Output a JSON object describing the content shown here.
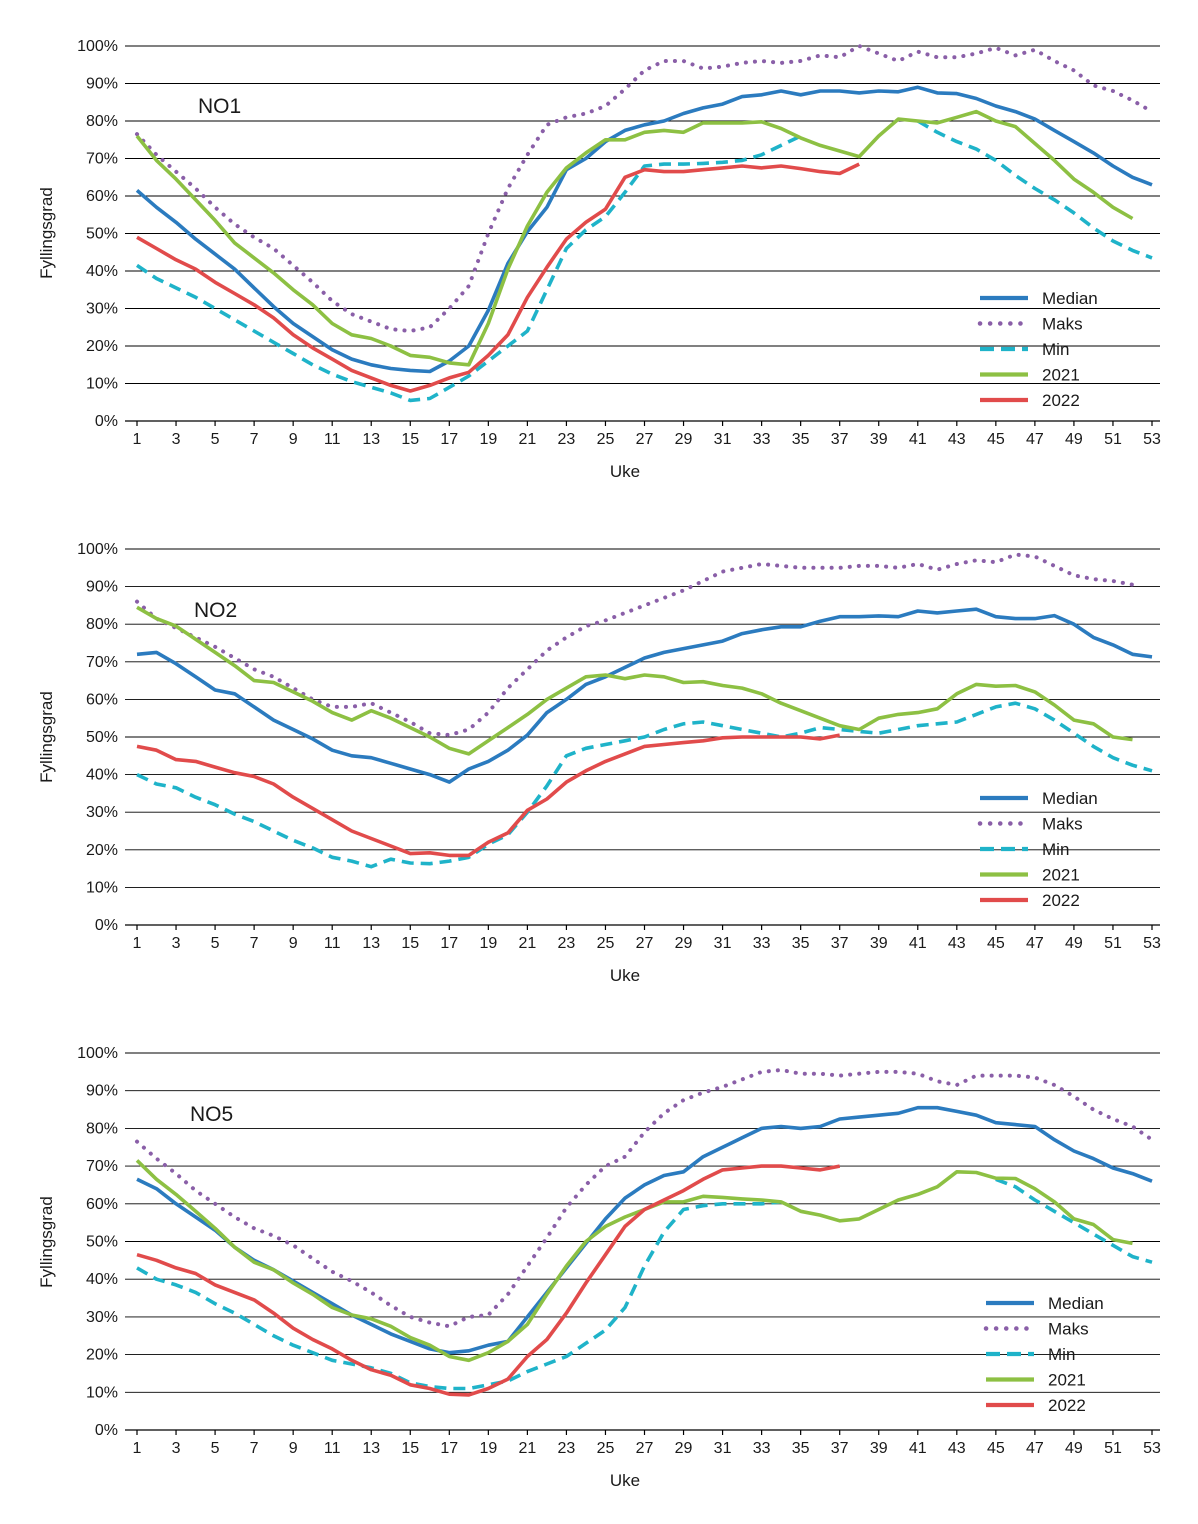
{
  "chart_data": [
    {
      "type": "line",
      "title": "NO1",
      "xlabel": "Uke",
      "ylabel": "Fyllingsgrad",
      "ylim": [
        0,
        100
      ],
      "y_ticks": [
        "0%",
        "10%",
        "20%",
        "30%",
        "40%",
        "50%",
        "60%",
        "70%",
        "80%",
        "90%",
        "100%"
      ],
      "x_ticks": [
        "1",
        "3",
        "5",
        "7",
        "9",
        "11",
        "13",
        "15",
        "17",
        "19",
        "21",
        "23",
        "25",
        "27",
        "29",
        "31",
        "33",
        "35",
        "37",
        "39",
        "41",
        "43",
        "45",
        "47",
        "49",
        "51",
        "53"
      ],
      "series": [
        {
          "name": "Median",
          "color": "#2b7bbf",
          "style": "solid",
          "values": [
            61.5,
            57,
            53,
            48.5,
            44.5,
            40.5,
            35.5,
            30.5,
            26,
            22.5,
            19,
            16.5,
            15,
            14,
            13.5,
            13.2,
            16,
            20,
            29.5,
            42,
            50.5,
            57,
            67,
            70,
            74.5,
            77.5,
            79,
            80,
            82,
            83.5,
            84.5,
            86.5,
            87,
            88,
            87,
            88,
            88,
            87.5,
            88,
            87.8,
            89,
            87.5,
            87.3,
            86,
            84,
            82.5,
            80.5,
            77.5,
            74.5,
            71.5,
            68,
            65,
            63
          ]
        },
        {
          "name": "Maks",
          "color": "#8a5fa8",
          "style": "dotted",
          "values": [
            76.5,
            71,
            66.5,
            62,
            57,
            52.5,
            49,
            46,
            41.5,
            37,
            32,
            28.5,
            26.5,
            24.5,
            24,
            25,
            30,
            36,
            50,
            62,
            71,
            79,
            81,
            82,
            84,
            88.5,
            93.5,
            96,
            96,
            94,
            94.5,
            95.5,
            96,
            95.5,
            96,
            97.5,
            97,
            100,
            98,
            96,
            98.5,
            97,
            97,
            98,
            99.5,
            97.5,
            99,
            96,
            93.5,
            89.5,
            88,
            85.5,
            82.5
          ]
        },
        {
          "name": "Min",
          "color": "#1fb3c9",
          "style": "dashed",
          "values": [
            41.5,
            38,
            35.5,
            33,
            30,
            27,
            24,
            21,
            18,
            15,
            12.5,
            10.5,
            9,
            7.5,
            5.5,
            6,
            9,
            12,
            16,
            20,
            24,
            35,
            46,
            51,
            54.5,
            61,
            68,
            68.5,
            68.5,
            68.7,
            69,
            69.5,
            71,
            73.5,
            76,
            null,
            null,
            null,
            null,
            null,
            80,
            77,
            74.5,
            72.5,
            69.5,
            65.5,
            62,
            59,
            55.5,
            51.5,
            48,
            45.5,
            43.5
          ]
        },
        {
          "name": "2021",
          "color": "#8dc043",
          "style": "solid",
          "values": [
            76,
            69.5,
            64.5,
            59,
            53.5,
            47.5,
            43.5,
            39.5,
            35,
            31,
            26,
            23,
            22,
            20,
            17.5,
            17,
            15.5,
            15,
            26,
            40.5,
            52,
            61,
            67.5,
            71.5,
            75,
            75,
            77,
            77.5,
            77,
            79.5,
            79.5,
            79.5,
            79.8,
            78,
            75.5,
            73.5,
            72,
            70.5,
            76,
            80.5,
            80,
            79.5,
            81,
            82.5,
            80,
            78.5,
            74,
            69.5,
            64.5,
            61,
            57,
            54,
            null
          ]
        },
        {
          "name": "2022",
          "color": "#e14b4b",
          "style": "solid",
          "values": [
            49,
            46,
            43,
            40.5,
            37,
            34,
            31,
            27.5,
            23,
            19.5,
            16.5,
            13.5,
            11.5,
            9.5,
            8,
            9.5,
            11.5,
            13,
            17.5,
            23,
            33,
            41,
            48.5,
            53,
            56.5,
            65,
            67,
            66.5,
            66.5,
            67,
            67.5,
            68,
            67.5,
            68,
            67.3,
            66.5,
            66,
            68.5,
            null,
            null,
            null,
            null,
            null,
            null,
            null,
            null,
            null,
            null,
            null,
            null,
            null,
            null,
            null
          ]
        }
      ]
    },
    {
      "type": "line",
      "title": "NO2",
      "xlabel": "Uke",
      "ylabel": "Fyllingsgrad",
      "ylim": [
        0,
        100
      ],
      "y_ticks": [
        "0%",
        "10%",
        "20%",
        "30%",
        "40%",
        "50%",
        "60%",
        "70%",
        "80%",
        "90%",
        "100%"
      ],
      "x_ticks": [
        "1",
        "3",
        "5",
        "7",
        "9",
        "11",
        "13",
        "15",
        "17",
        "19",
        "21",
        "23",
        "25",
        "27",
        "29",
        "31",
        "33",
        "35",
        "37",
        "39",
        "41",
        "43",
        "45",
        "47",
        "49",
        "51",
        "53"
      ],
      "series": [
        {
          "name": "Median",
          "color": "#2b7bbf",
          "style": "solid",
          "values": [
            72,
            72.5,
            69.5,
            66,
            62.5,
            61.5,
            58,
            54.5,
            52,
            49.5,
            46.5,
            45,
            44.5,
            43,
            41.5,
            40,
            38,
            41.5,
            43.5,
            46.5,
            50.5,
            56.5,
            60,
            64,
            66,
            68.5,
            71,
            72.5,
            73.5,
            74.5,
            75.5,
            77.5,
            78.5,
            79.3,
            79.3,
            80.8,
            82,
            82,
            82.2,
            82,
            83.5,
            83,
            83.5,
            84,
            82,
            81.5,
            81.5,
            82.3,
            80,
            76.5,
            74.5,
            72,
            71.3
          ]
        },
        {
          "name": "Maks",
          "color": "#8a5fa8",
          "style": "dotted",
          "values": [
            86,
            81.5,
            79,
            76.5,
            74,
            71,
            68,
            66,
            63,
            60,
            58,
            58,
            59,
            56.5,
            54,
            51,
            50.5,
            52,
            56.5,
            63,
            68,
            73,
            76.5,
            79.5,
            81,
            83,
            85,
            87,
            89,
            91.5,
            94,
            95,
            96,
            95.5,
            95,
            95,
            95,
            95.5,
            95.5,
            95,
            96,
            94.5,
            96,
            97,
            96.5,
            98.5,
            98,
            95.5,
            93,
            92,
            91.5,
            90.5,
            null
          ]
        },
        {
          "name": "Min",
          "color": "#1fb3c9",
          "style": "dashed",
          "values": [
            40,
            37.5,
            36.5,
            34,
            32,
            29.5,
            27.5,
            25,
            22.5,
            20.5,
            18,
            17,
            15.5,
            17.5,
            16.5,
            16.3,
            17,
            18,
            21.5,
            24,
            30,
            37,
            45,
            47,
            48,
            49,
            50,
            52,
            53.5,
            54,
            53,
            52,
            51,
            50,
            51,
            52.5,
            52,
            51.5,
            51,
            52,
            53,
            53.5,
            54,
            56,
            58,
            59,
            57.5,
            54.5,
            51,
            47.5,
            44.5,
            42.5,
            41
          ]
        },
        {
          "name": "2021",
          "color": "#8dc043",
          "style": "solid",
          "values": [
            84.5,
            81.5,
            79.5,
            76,
            72.5,
            69,
            65,
            64.5,
            62,
            59.5,
            56.5,
            54.5,
            57,
            55,
            52.5,
            50,
            47,
            45.5,
            49,
            52.5,
            56,
            60,
            63,
            66,
            66.5,
            65.5,
            66.5,
            66,
            64.5,
            64.7,
            63.7,
            63,
            61.5,
            59,
            57,
            55,
            53,
            52,
            55,
            56,
            56.5,
            57.5,
            61.5,
            64,
            63.5,
            63.7,
            62,
            58.5,
            54.5,
            53.5,
            50,
            49.3,
            null
          ]
        },
        {
          "name": "2022",
          "color": "#e14b4b",
          "style": "solid",
          "values": [
            47.5,
            46.5,
            44,
            43.5,
            42,
            40.5,
            39.5,
            37.5,
            34,
            31,
            28,
            25,
            23,
            21,
            19,
            19.2,
            18.5,
            18.5,
            22,
            24.5,
            30.5,
            33.5,
            38,
            41,
            43.5,
            45.5,
            47.5,
            48,
            48.5,
            49,
            49.8,
            50,
            50,
            50,
            50,
            49.5,
            50.5,
            null,
            null,
            null,
            null,
            null,
            null,
            null,
            null,
            null,
            null,
            null,
            null,
            null,
            null,
            null,
            null
          ]
        }
      ]
    },
    {
      "type": "line",
      "title": "NO5",
      "xlabel": "Uke",
      "ylabel": "Fyllingsgrad",
      "ylim": [
        0,
        100
      ],
      "y_ticks": [
        "0%",
        "10%",
        "20%",
        "30%",
        "40%",
        "50%",
        "60%",
        "70%",
        "80%",
        "90%",
        "100%"
      ],
      "x_ticks": [
        "1",
        "3",
        "5",
        "7",
        "9",
        "11",
        "13",
        "15",
        "17",
        "19",
        "21",
        "23",
        "25",
        "27",
        "29",
        "31",
        "33",
        "35",
        "37",
        "39",
        "41",
        "43",
        "45",
        "47",
        "49",
        "51",
        "53"
      ],
      "series": [
        {
          "name": "Median",
          "color": "#2b7bbf",
          "style": "solid",
          "values": [
            66.5,
            64,
            60,
            56.5,
            53,
            48.5,
            45,
            42.5,
            39.5,
            36.5,
            33.5,
            30.5,
            28,
            25.5,
            23.5,
            21.5,
            20.5,
            21,
            22.5,
            23.5,
            30,
            36.5,
            43,
            49.5,
            56,
            61.5,
            65,
            67.5,
            68.5,
            72.5,
            75,
            77.5,
            80,
            80.5,
            80,
            80.5,
            82.5,
            83,
            83.5,
            84,
            85.5,
            85.5,
            84.5,
            83.5,
            81.5,
            81,
            80.5,
            77,
            74,
            72,
            69.5,
            68,
            66
          ]
        },
        {
          "name": "Maks",
          "color": "#8a5fa8",
          "style": "dotted",
          "values": [
            76.5,
            72,
            68,
            63.5,
            60,
            56.5,
            53.5,
            51.5,
            49,
            45.5,
            42,
            39.5,
            36.5,
            33,
            30,
            28.5,
            27.5,
            30,
            30.5,
            36,
            43.5,
            51,
            59,
            65,
            70,
            72.5,
            79,
            84,
            87.5,
            89.5,
            91,
            93,
            95,
            95.5,
            94.5,
            94.5,
            94,
            94.5,
            95,
            95,
            94.5,
            92.5,
            91.5,
            94,
            94,
            94,
            93.5,
            91.5,
            88.5,
            85,
            82.5,
            80.5,
            77
          ]
        },
        {
          "name": "Min",
          "color": "#1fb3c9",
          "style": "dashed",
          "values": [
            43,
            40,
            38.5,
            36.5,
            33.5,
            31,
            28,
            25,
            22.5,
            20.5,
            18.5,
            17.5,
            16.5,
            15,
            12.5,
            11.5,
            11,
            11,
            12,
            13,
            15.5,
            17.5,
            19.5,
            23,
            26.5,
            32.5,
            43.5,
            52.5,
            58.5,
            59.5,
            60,
            60,
            60,
            60.5,
            null,
            null,
            null,
            null,
            null,
            null,
            null,
            null,
            null,
            null,
            66.5,
            64.5,
            61,
            58,
            55,
            52,
            49,
            46,
            44.5
          ]
        },
        {
          "name": "2021",
          "color": "#8dc043",
          "style": "solid",
          "values": [
            71.5,
            66.5,
            62.5,
            58,
            53.5,
            48.5,
            44.5,
            42.5,
            39,
            36,
            32.5,
            30.5,
            29.5,
            27.5,
            24.5,
            22.5,
            19.5,
            18.5,
            20.5,
            23.5,
            28,
            36,
            43.5,
            50,
            54,
            56.5,
            58.5,
            60.5,
            60.5,
            62,
            61.7,
            61.3,
            61,
            60.5,
            58,
            57,
            55.5,
            56,
            58.5,
            61,
            62.5,
            64.5,
            68.5,
            68.3,
            66.8,
            66.7,
            64,
            60.5,
            56,
            54.5,
            50.5,
            49.5,
            null
          ]
        },
        {
          "name": "2022",
          "color": "#e14b4b",
          "style": "solid",
          "values": [
            46.5,
            45,
            43,
            41.5,
            38.5,
            36.5,
            34.5,
            31,
            27,
            24,
            21.5,
            18.5,
            16,
            14.5,
            12,
            11,
            9.5,
            9.3,
            11,
            13.5,
            19.5,
            24,
            31,
            39,
            46.5,
            54,
            58.5,
            61,
            63.5,
            66.5,
            69,
            69.5,
            70,
            70,
            69.5,
            69,
            70,
            null,
            null,
            null,
            null,
            null,
            null,
            null,
            null,
            null,
            null,
            null,
            null,
            null,
            null,
            null,
            null
          ]
        }
      ]
    }
  ]
}
